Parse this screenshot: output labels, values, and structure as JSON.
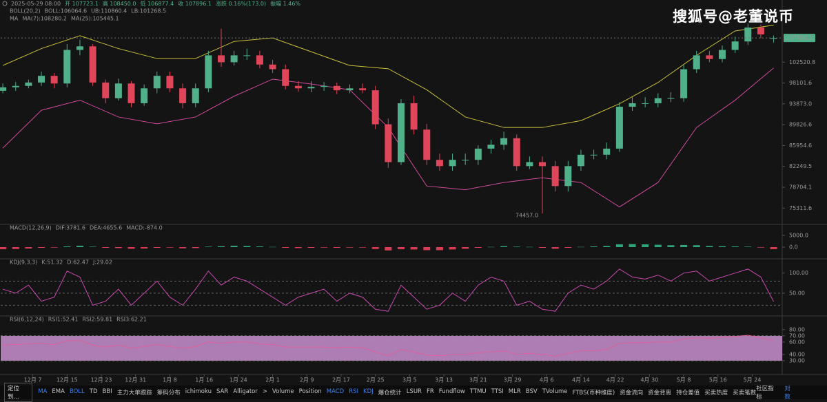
{
  "header": {
    "fields": [
      "2025-05-29 08:00",
      "开 107723.1",
      "高 108450.0",
      "低 106877.4",
      "收 107896.1",
      "涨跌 0.16%(173.0)",
      "振幅 1.46%"
    ]
  },
  "watermark": "搜狐号@老董说币",
  "toolbar": {
    "locate": "定位到...",
    "items": [
      {
        "label": "MA",
        "active": true
      },
      {
        "label": "EMA",
        "active": false
      },
      {
        "label": "BOLL",
        "active": true
      },
      {
        "label": "TD",
        "active": false
      },
      {
        "label": "BBI",
        "active": false
      },
      {
        "label": "主力大单跟踪",
        "active": false
      },
      {
        "label": "筹码分布",
        "active": false
      },
      {
        "label": "ichimoku",
        "active": false
      },
      {
        "label": "SAR",
        "active": false
      },
      {
        "label": "Alligator",
        "active": false
      },
      {
        "label": ">",
        "active": false
      },
      {
        "label": "Volume",
        "active": false
      },
      {
        "label": "Position",
        "active": false
      },
      {
        "label": "MACD",
        "active": true
      },
      {
        "label": "RSI",
        "active": true
      },
      {
        "label": "KDJ",
        "active": true
      },
      {
        "label": "爆仓统计",
        "active": false
      },
      {
        "label": "LSUR",
        "active": false
      },
      {
        "label": "FR",
        "active": false
      },
      {
        "label": "Fundflow",
        "active": false
      },
      {
        "label": "TTMU",
        "active": false
      },
      {
        "label": "TTSI",
        "active": false
      },
      {
        "label": "MLR",
        "active": false
      },
      {
        "label": "BSV",
        "active": false
      },
      {
        "label": "TVolume",
        "active": false
      },
      {
        "label": "FTBS(币种维度)",
        "active": false
      },
      {
        "label": "资金流向",
        "active": false
      },
      {
        "label": "资金背离",
        "active": false
      },
      {
        "label": "持仓差值",
        "active": false
      },
      {
        "label": "买卖热度",
        "active": false
      },
      {
        "label": "买卖笔数",
        "active": false
      }
    ],
    "right": [
      {
        "label": "社区指标",
        "active": false
      },
      {
        "label": "对数",
        "active": true
      }
    ]
  },
  "chart_data": [
    {
      "type": "candlestick",
      "log": true,
      "up_color": "#4fb08a",
      "down_color": "#e0455a",
      "xlim": [
        -0.5,
        182
      ],
      "ylim": [
        73400,
        111100
      ],
      "yticks": [
        102520.8,
        98101.6,
        {
          "value": 93873,
          "label": "93873.0"
        },
        89826.6,
        85954.6,
        82249.5,
        78704.1,
        75311.6
      ],
      "legend_rows": [
        [
          {
            "text": "BOLL(20,2)",
            "color": "#9a9a9a"
          },
          {
            "text": "BOLL:106064.6",
            "color": "#555555"
          },
          {
            "text": "UB:110860.4",
            "color": "#8a8a30"
          },
          {
            "text": "LB:101268.5",
            "color": "#d04a9a"
          }
        ],
        [
          {
            "text": "MA",
            "color": "#9a9a9a"
          },
          {
            "text": "MA(7):108280.2",
            "color": "#555555"
          },
          {
            "text": "MA(25):105445.1",
            "color": "#8a8a30"
          }
        ]
      ],
      "x": [
        0,
        3,
        6,
        9,
        12,
        15,
        18,
        21,
        24,
        27,
        30,
        33,
        36,
        39,
        42,
        45,
        48,
        51,
        54,
        57,
        60,
        63,
        66,
        69,
        72,
        75,
        78,
        81,
        84,
        87,
        90,
        93,
        96,
        99,
        102,
        105,
        108,
        111,
        114,
        117,
        120,
        123,
        126,
        129,
        132,
        135,
        138,
        141,
        144,
        147,
        150,
        153,
        156,
        159,
        162,
        165,
        168,
        171,
        174,
        177,
        180
      ],
      "open": [
        96500,
        97200,
        97500,
        98200,
        99600,
        98000,
        105200,
        106000,
        98200,
        95000,
        98000,
        94000,
        97000,
        99600,
        97000,
        94000,
        97000,
        104000,
        102500,
        104000,
        104000,
        102000,
        101000,
        97500,
        97000,
        97300,
        97500,
        96600,
        97000,
        96600,
        89900,
        83000,
        94000,
        88900,
        83400,
        82300,
        83400,
        83400,
        85400,
        86100,
        87300,
        82300,
        83000,
        82300,
        78900,
        82300,
        84300,
        84300,
        85400,
        93300,
        94000,
        94000,
        95000,
        95000,
        101000,
        104000,
        103200,
        105200,
        107100,
        110300,
        107723.1
      ],
      "high": [
        98000,
        98300,
        98800,
        100500,
        100200,
        106500,
        107500,
        106500,
        98800,
        99000,
        98500,
        97800,
        100500,
        100500,
        98000,
        98000,
        105000,
        110000,
        105000,
        105500,
        105000,
        103000,
        102000,
        98500,
        98500,
        98300,
        98200,
        97800,
        98000,
        97500,
        91000,
        94800,
        95500,
        90000,
        84500,
        84500,
        84500,
        86000,
        87000,
        88500,
        88000,
        84000,
        84000,
        83200,
        83200,
        85200,
        85200,
        86500,
        94200,
        95200,
        95200,
        96000,
        96200,
        102000,
        105000,
        105000,
        106200,
        108200,
        111200,
        111000,
        108450
      ],
      "low": [
        96000,
        96500,
        97000,
        97500,
        97000,
        97200,
        104000,
        97500,
        94000,
        94500,
        93200,
        93500,
        96000,
        96200,
        93000,
        93200,
        96200,
        101500,
        101800,
        103000,
        101200,
        100200,
        96800,
        96300,
        96200,
        96500,
        95800,
        96000,
        96000,
        89000,
        82000,
        82500,
        88000,
        82500,
        81500,
        81500,
        82500,
        82500,
        84500,
        85200,
        81500,
        81800,
        74457,
        78000,
        78000,
        81500,
        83500,
        83500,
        84800,
        92500,
        93200,
        93200,
        94200,
        94300,
        100200,
        102500,
        102500,
        104500,
        106300,
        107800,
        106877.4
      ],
      "close": [
        97200,
        97500,
        98200,
        99600,
        98000,
        105200,
        106000,
        98200,
        95000,
        98000,
        94000,
        97000,
        99600,
        97000,
        94000,
        97000,
        104000,
        102500,
        104000,
        104000,
        102000,
        101000,
        97500,
        97000,
        97300,
        97500,
        96600,
        97000,
        96600,
        89900,
        83000,
        94000,
        88900,
        83400,
        82300,
        83400,
        83400,
        85400,
        86100,
        87300,
        82300,
        83000,
        82300,
        78900,
        82300,
        84300,
        84300,
        85400,
        93300,
        94000,
        94000,
        95000,
        95000,
        101000,
        104000,
        103200,
        105200,
        107100,
        110300,
        108700,
        107896.1
      ],
      "low_label": {
        "index": 42,
        "text": "74457.0"
      },
      "overlays": [
        {
          "color": "#c9c23a",
          "x": [
            0,
            9,
            18,
            27,
            36,
            45,
            54,
            63,
            72,
            81,
            90,
            99,
            108,
            117,
            126,
            135,
            144,
            153,
            162,
            171,
            180
          ],
          "values": [
            101800,
            105500,
            108400,
            105500,
            103300,
            103300,
            107100,
            107900,
            104800,
            101800,
            101100,
            96700,
            91300,
            89300,
            89300,
            90600,
            93900,
            98200,
            104000,
            109500,
            110860.4
          ]
        },
        {
          "color": "#d04a9a",
          "x": [
            0,
            9,
            18,
            27,
            36,
            45,
            54,
            63,
            72,
            81,
            90,
            99,
            108,
            117,
            126,
            135,
            144,
            153,
            162,
            171,
            180
          ],
          "values": [
            85500,
            92600,
            94600,
            91300,
            90000,
            91300,
            95400,
            98900,
            97900,
            96700,
            89300,
            78900,
            78300,
            79500,
            80300,
            79500,
            75500,
            79500,
            89300,
            94600,
            101268.5
          ]
        }
      ]
    },
    {
      "type": "bar",
      "up_color": "#2fa57a",
      "down_color": "#d63c52",
      "xlim": [
        -0.5,
        182
      ],
      "ylim": [
        -4700,
        9400
      ],
      "yticks": [
        {
          "value": 5000,
          "label": "5000.0"
        },
        {
          "value": 0,
          "label": "0.0"
        }
      ],
      "legend_rows": [
        [
          {
            "text": "MACD(12,26,9)",
            "color": "#9a9a9a"
          },
          {
            "text": "DIF:3781.6",
            "color": "#555555"
          },
          {
            "text": "DEA:4655.6",
            "color": "#8a8a30"
          },
          {
            "text": "MACD:-874.0",
            "color": "#d63c52"
          }
        ]
      ],
      "x": [
        0,
        3,
        6,
        9,
        12,
        15,
        18,
        21,
        24,
        27,
        30,
        33,
        36,
        39,
        42,
        45,
        48,
        51,
        54,
        57,
        60,
        63,
        66,
        69,
        72,
        75,
        78,
        81,
        84,
        87,
        90,
        93,
        96,
        99,
        102,
        105,
        108,
        111,
        114,
        117,
        120,
        123,
        126,
        129,
        132,
        135,
        138,
        141,
        144,
        147,
        150,
        153,
        156,
        159,
        162,
        165,
        168,
        171,
        174,
        177,
        180
      ],
      "values": [
        -900,
        -800,
        -600,
        -300,
        -200,
        300,
        600,
        200,
        -300,
        -400,
        -700,
        -600,
        -300,
        -200,
        -500,
        -400,
        200,
        400,
        600,
        500,
        300,
        100,
        -300,
        -400,
        -300,
        -200,
        -300,
        -200,
        -200,
        -800,
        -1400,
        -900,
        -1000,
        -1300,
        -1300,
        -1000,
        -700,
        -300,
        100,
        400,
        200,
        100,
        -300,
        -700,
        -300,
        100,
        300,
        500,
        1200,
        1300,
        1200,
        1000,
        800,
        900,
        800,
        500,
        400,
        300,
        200,
        -200,
        -874
      ]
    },
    {
      "type": "line",
      "xlim": [
        -0.5,
        182
      ],
      "ylim": [
        -5,
        132
      ],
      "yticks": [
        {
          "value": 100,
          "label": "100.00"
        },
        {
          "value": 50,
          "label": "50.00"
        }
      ],
      "reference_lines": [
        80,
        50,
        20
      ],
      "legend_rows": [
        [
          {
            "text": "KDJ(9,3,3)",
            "color": "#9a9a9a"
          },
          {
            "text": "K:51.32",
            "color": "#555555"
          },
          {
            "text": "D:62.47",
            "color": "#8a8a30"
          },
          {
            "text": "J:29.02",
            "color": "#c84ab0"
          }
        ]
      ],
      "x": [
        0,
        3,
        6,
        9,
        12,
        15,
        18,
        21,
        24,
        27,
        30,
        33,
        36,
        39,
        42,
        45,
        48,
        51,
        54,
        57,
        60,
        63,
        66,
        69,
        72,
        75,
        78,
        81,
        84,
        87,
        90,
        93,
        96,
        99,
        102,
        105,
        108,
        111,
        114,
        117,
        120,
        123,
        126,
        129,
        132,
        135,
        138,
        141,
        144,
        147,
        150,
        153,
        156,
        159,
        162,
        165,
        168,
        171,
        174,
        177,
        180
      ],
      "series": [
        {
          "color": "#c84ab0",
          "values": [
            60,
            50,
            70,
            30,
            40,
            105,
            90,
            20,
            30,
            60,
            20,
            50,
            80,
            40,
            20,
            60,
            105,
            70,
            90,
            80,
            60,
            40,
            20,
            40,
            50,
            60,
            30,
            50,
            40,
            10,
            5,
            70,
            40,
            10,
            20,
            50,
            30,
            70,
            90,
            80,
            20,
            30,
            10,
            5,
            50,
            70,
            60,
            80,
            110,
            90,
            85,
            95,
            80,
            100,
            105,
            80,
            90,
            100,
            110,
            90,
            29.02
          ]
        }
      ]
    },
    {
      "type": "line",
      "xlim": [
        -0.5,
        182
      ],
      "ylim": [
        9,
        102
      ],
      "yticks": [
        {
          "value": 80,
          "label": "80.00"
        },
        {
          "value": 70,
          "label": "70.00"
        },
        {
          "value": 60,
          "label": "60.00"
        },
        {
          "value": 40,
          "label": "40.00"
        },
        {
          "value": 30,
          "label": "30.00"
        }
      ],
      "band": [
        30,
        70
      ],
      "band_color": "#c88fd0",
      "legend_rows": [
        [
          {
            "text": "RSI(6,12,24)",
            "color": "#9a9a9a"
          },
          {
            "text": "RSI1:52.41",
            "color": "#555555"
          },
          {
            "text": "RSI2:59.81",
            "color": "#8a8a30"
          },
          {
            "text": "RSI3:62.21",
            "color": "#c84ab0"
          }
        ]
      ],
      "x": [
        0,
        3,
        6,
        9,
        12,
        15,
        18,
        21,
        24,
        27,
        30,
        33,
        36,
        39,
        42,
        45,
        48,
        51,
        54,
        57,
        60,
        63,
        66,
        69,
        72,
        75,
        78,
        81,
        84,
        87,
        90,
        93,
        96,
        99,
        102,
        105,
        108,
        111,
        114,
        117,
        120,
        123,
        126,
        129,
        132,
        135,
        138,
        141,
        144,
        147,
        150,
        153,
        156,
        159,
        162,
        165,
        168,
        171,
        174,
        177,
        180
      ],
      "series": [
        {
          "color": "#e0609a",
          "values": [
            55,
            56,
            57,
            58,
            56,
            62,
            63,
            55,
            52,
            55,
            50,
            53,
            56,
            53,
            50,
            53,
            60,
            58,
            60,
            60,
            57,
            56,
            52,
            52,
            52,
            52,
            51,
            52,
            51,
            44,
            38,
            48,
            44,
            39,
            38,
            40,
            40,
            43,
            44,
            46,
            40,
            42,
            40,
            37,
            42,
            46,
            46,
            48,
            58,
            59,
            59,
            60,
            60,
            65,
            67,
            66,
            68,
            69,
            71,
            67,
            62.21
          ]
        }
      ],
      "xticks": [
        {
          "value": 7,
          "label": "12月 7"
        },
        {
          "value": 15,
          "label": "12月 15"
        },
        {
          "value": 23,
          "label": "12月 23"
        },
        {
          "value": 31,
          "label": "12月 31"
        },
        {
          "value": 39,
          "label": "1月 8"
        },
        {
          "value": 47,
          "label": "1月 16"
        },
        {
          "value": 55,
          "label": "1月 24"
        },
        {
          "value": 63,
          "label": "2月 1"
        },
        {
          "value": 71,
          "label": "2月 9"
        },
        {
          "value": 79,
          "label": "2月 17"
        },
        {
          "value": 87,
          "label": "2月 25"
        },
        {
          "value": 95,
          "label": "3月 5"
        },
        {
          "value": 103,
          "label": "3月 13"
        },
        {
          "value": 111,
          "label": "3月 21"
        },
        {
          "value": 119,
          "label": "3月 29"
        },
        {
          "value": 127,
          "label": "4月 6"
        },
        {
          "value": 135,
          "label": "4月 14"
        },
        {
          "value": 143,
          "label": "4月 22"
        },
        {
          "value": 151,
          "label": "4月 30"
        },
        {
          "value": 159,
          "label": "5月 8"
        },
        {
          "value": 167,
          "label": "5月 16"
        },
        {
          "value": 175,
          "label": "5月 24"
        }
      ]
    }
  ]
}
